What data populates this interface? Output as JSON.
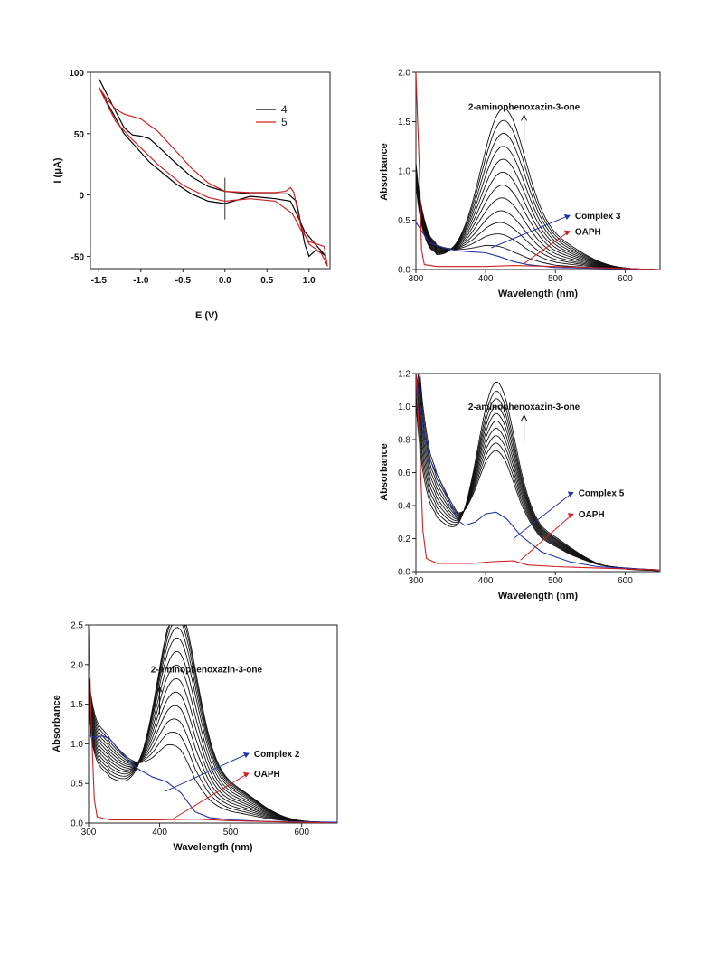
{
  "chart_data": [
    {
      "id": "cv",
      "type": "line",
      "xlabel": "E (V)",
      "ylabel": "I (μA)",
      "xlim": [
        -1.6,
        1.25
      ],
      "ylim": [
        -60,
        100
      ],
      "xticks": [
        -1.5,
        -1.0,
        -0.5,
        0.0,
        0.5,
        1.0
      ],
      "xtick_labels": [
        "-1.5",
        "-1.0",
        "-0.5",
        "0.0",
        "0.5",
        "1.0"
      ],
      "yticks": [
        -50,
        0,
        50,
        100
      ],
      "ytick_labels": [
        "-50",
        "0",
        "50",
        "100"
      ],
      "legend_position": "top-right",
      "series": [
        {
          "name": "4",
          "color": "#000000",
          "forward": [
            [
              -1.5,
              95
            ],
            [
              -1.35,
              75
            ],
            [
              -1.2,
              55
            ],
            [
              -1.1,
              49
            ],
            [
              -1.0,
              48
            ],
            [
              -0.9,
              46
            ],
            [
              -0.8,
              40
            ],
            [
              -0.6,
              27
            ],
            [
              -0.4,
              15
            ],
            [
              -0.2,
              7
            ],
            [
              0.0,
              3
            ],
            [
              0.3,
              1
            ],
            [
              0.6,
              1
            ],
            [
              0.75,
              1
            ],
            [
              0.85,
              -5
            ],
            [
              0.95,
              -40
            ],
            [
              1.0,
              -50
            ],
            [
              1.08,
              -45
            ],
            [
              1.15,
              -47
            ],
            [
              1.2,
              -50
            ]
          ],
          "reverse": [
            [
              1.2,
              -50
            ],
            [
              1.1,
              -42
            ],
            [
              0.95,
              -30
            ],
            [
              0.85,
              -15
            ],
            [
              0.78,
              -5
            ],
            [
              0.6,
              -3
            ],
            [
              0.3,
              -1
            ],
            [
              0.0,
              -7
            ],
            [
              -0.2,
              -5
            ],
            [
              -0.4,
              1
            ],
            [
              -0.6,
              10
            ],
            [
              -0.9,
              27
            ],
            [
              -1.2,
              50
            ],
            [
              -1.5,
              88
            ]
          ]
        },
        {
          "name": "5",
          "color": "#cc2222",
          "forward": [
            [
              -1.5,
              88
            ],
            [
              -1.4,
              78
            ],
            [
              -1.3,
              70
            ],
            [
              -1.2,
              66
            ],
            [
              -1.0,
              62
            ],
            [
              -0.8,
              52
            ],
            [
              -0.6,
              37
            ],
            [
              -0.4,
              22
            ],
            [
              -0.2,
              10
            ],
            [
              0.0,
              3
            ],
            [
              0.3,
              2
            ],
            [
              0.6,
              2
            ],
            [
              0.72,
              3
            ],
            [
              0.78,
              6
            ],
            [
              0.82,
              2
            ],
            [
              0.9,
              -25
            ],
            [
              1.0,
              -40
            ],
            [
              1.1,
              -45
            ],
            [
              1.15,
              -48
            ],
            [
              1.22,
              -58
            ]
          ],
          "reverse": [
            [
              1.22,
              -58
            ],
            [
              1.18,
              -42
            ],
            [
              1.1,
              -40
            ],
            [
              1.0,
              -38
            ],
            [
              0.9,
              -28
            ],
            [
              0.8,
              -15
            ],
            [
              0.6,
              -5
            ],
            [
              0.3,
              -3
            ],
            [
              0.0,
              -5
            ],
            [
              -0.2,
              -2
            ],
            [
              -0.5,
              8
            ],
            [
              -0.8,
              25
            ],
            [
              -1.1,
              45
            ],
            [
              -1.3,
              60
            ],
            [
              -1.5,
              88
            ]
          ]
        }
      ]
    },
    {
      "id": "uv3",
      "type": "line",
      "xlabel": "Wavelength (nm)",
      "ylabel": "Absorbance",
      "xlim": [
        300,
        650
      ],
      "ylim": [
        0,
        2.0
      ],
      "xticks": [
        300,
        400,
        500,
        600
      ],
      "yticks": [
        0.0,
        0.5,
        1.0,
        1.5,
        2.0
      ],
      "xtick_labels": [
        "300",
        "400",
        "500",
        "600"
      ],
      "ytick_labels": [
        "0.0",
        "0.5",
        "1.0",
        "1.5",
        "2.0"
      ],
      "peak_nm": 425,
      "peak_width": 45,
      "peak_heights": [
        0.1,
        0.23,
        0.35,
        0.47,
        0.6,
        0.73,
        0.86,
        0.99,
        1.12,
        1.25,
        1.38,
        1.5
      ],
      "annotations": [
        {
          "text": "2-aminophenoxazin-3-one",
          "x": 455,
          "y": 1.62
        },
        {
          "text": "Complex 3",
          "x": 515,
          "y": 0.55
        },
        {
          "text": "OAPH",
          "x": 515,
          "y": 0.39
        }
      ],
      "series": [
        {
          "name": "Complex 3",
          "color": "#2233aa",
          "points": [
            [
              300,
              0.48
            ],
            [
              312,
              0.35
            ],
            [
              320,
              0.27
            ],
            [
              340,
              0.22
            ],
            [
              360,
              0.19
            ],
            [
              380,
              0.18
            ],
            [
              400,
              0.17
            ],
            [
              420,
              0.13
            ],
            [
              440,
              0.08
            ],
            [
              460,
              0.05
            ],
            [
              500,
              0.02
            ],
            [
              650,
              0.0
            ]
          ]
        },
        {
          "name": "OAPH",
          "color": "#cc2222",
          "points": [
            [
              300,
              2.0
            ],
            [
              305,
              1.0
            ],
            [
              308,
              0.2
            ],
            [
              312,
              0.05
            ],
            [
              330,
              0.03
            ],
            [
              400,
              0.03
            ],
            [
              440,
              0.04
            ],
            [
              500,
              0.03
            ],
            [
              650,
              0.0
            ]
          ]
        }
      ]
    },
    {
      "id": "uv5",
      "type": "line",
      "xlabel": "Wavelength (nm)",
      "ylabel": "Absorbance",
      "xlim": [
        300,
        650
      ],
      "ylim": [
        0,
        1.2
      ],
      "xticks": [
        300,
        400,
        500,
        600
      ],
      "yticks": [
        0.0,
        0.2,
        0.4,
        0.6,
        0.8,
        1.0,
        1.2
      ],
      "xtick_labels": [
        "300",
        "400",
        "500",
        "600"
      ],
      "ytick_labels": [
        "0.0",
        "0.2",
        "0.4",
        "0.6",
        "0.8",
        "1.0",
        "1.2"
      ],
      "peak_nm": 415,
      "peak_width": 38,
      "peak_heights": [
        0.36,
        0.42,
        0.48,
        0.54,
        0.6,
        0.66,
        0.72,
        0.78,
        0.84,
        0.91
      ],
      "annotations": [
        {
          "text": "2-aminophenoxazin-3-one",
          "x": 455,
          "y": 0.98
        },
        {
          "text": "Complex 5",
          "x": 520,
          "y": 0.48
        },
        {
          "text": "OAPH",
          "x": 520,
          "y": 0.35
        }
      ],
      "series": [
        {
          "name": "Complex 5",
          "color": "#2233aa",
          "points": [
            [
              300,
              1.2
            ],
            [
              310,
              0.88
            ],
            [
              320,
              0.68
            ],
            [
              340,
              0.5
            ],
            [
              360,
              0.31
            ],
            [
              370,
              0.28
            ],
            [
              385,
              0.3
            ],
            [
              400,
              0.35
            ],
            [
              415,
              0.36
            ],
            [
              430,
              0.32
            ],
            [
              450,
              0.22
            ],
            [
              480,
              0.12
            ],
            [
              520,
              0.06
            ],
            [
              560,
              0.03
            ],
            [
              650,
              0.01
            ]
          ]
        },
        {
          "name": "OAPH",
          "color": "#cc2222",
          "points": [
            [
              300,
              1.2
            ],
            [
              305,
              0.8
            ],
            [
              310,
              0.25
            ],
            [
              315,
              0.08
            ],
            [
              330,
              0.05
            ],
            [
              380,
              0.05
            ],
            [
              410,
              0.06
            ],
            [
              440,
              0.065
            ],
            [
              460,
              0.04
            ],
            [
              500,
              0.03
            ],
            [
              650,
              0.01
            ]
          ]
        }
      ]
    },
    {
      "id": "uv2",
      "type": "line",
      "xlabel": "Wavelength (nm)",
      "ylabel": "Absorbance",
      "xlim": [
        300,
        650
      ],
      "ylim": [
        0,
        2.5
      ],
      "xticks": [
        300,
        400,
        500,
        600
      ],
      "yticks": [
        0.0,
        0.5,
        1.0,
        1.5,
        2.0,
        2.5
      ],
      "xtick_labels": [
        "300",
        "400",
        "500",
        "600"
      ],
      "ytick_labels": [
        "0.0",
        "0.5",
        "1.0",
        "1.5",
        "2.0",
        "2.5"
      ],
      "peak_nm": 425,
      "peak_width": 40,
      "peak_heights": [
        0.52,
        0.7,
        0.88,
        1.06,
        1.24,
        1.42,
        1.6,
        1.78,
        1.96,
        2.1,
        2.22,
        2.32,
        2.4
      ],
      "annotations": [
        {
          "text": "2-aminophenoxazin-3-one",
          "x": 466,
          "y": 1.9
        },
        {
          "text": "Complex 2",
          "x": 520,
          "y": 0.88
        },
        {
          "text": "OAPH",
          "x": 520,
          "y": 0.63
        }
      ],
      "series": [
        {
          "name": "Complex 2",
          "color": "#2233aa",
          "points": [
            [
              300,
              1.1
            ],
            [
              310,
              1.08
            ],
            [
              320,
              1.1
            ],
            [
              330,
              1.06
            ],
            [
              340,
              0.95
            ],
            [
              355,
              0.8
            ],
            [
              370,
              0.68
            ],
            [
              390,
              0.58
            ],
            [
              410,
              0.52
            ],
            [
              430,
              0.38
            ],
            [
              450,
              0.14
            ],
            [
              470,
              0.07
            ],
            [
              500,
              0.04
            ],
            [
              550,
              0.02
            ],
            [
              650,
              0.01
            ]
          ]
        },
        {
          "name": "OAPH",
          "color": "#cc2222",
          "points": [
            [
              300,
              2.5
            ],
            [
              304,
              1.2
            ],
            [
              308,
              0.3
            ],
            [
              312,
              0.08
            ],
            [
              330,
              0.04
            ],
            [
              400,
              0.04
            ],
            [
              450,
              0.05
            ],
            [
              500,
              0.03
            ],
            [
              650,
              0.0
            ]
          ]
        }
      ]
    }
  ]
}
